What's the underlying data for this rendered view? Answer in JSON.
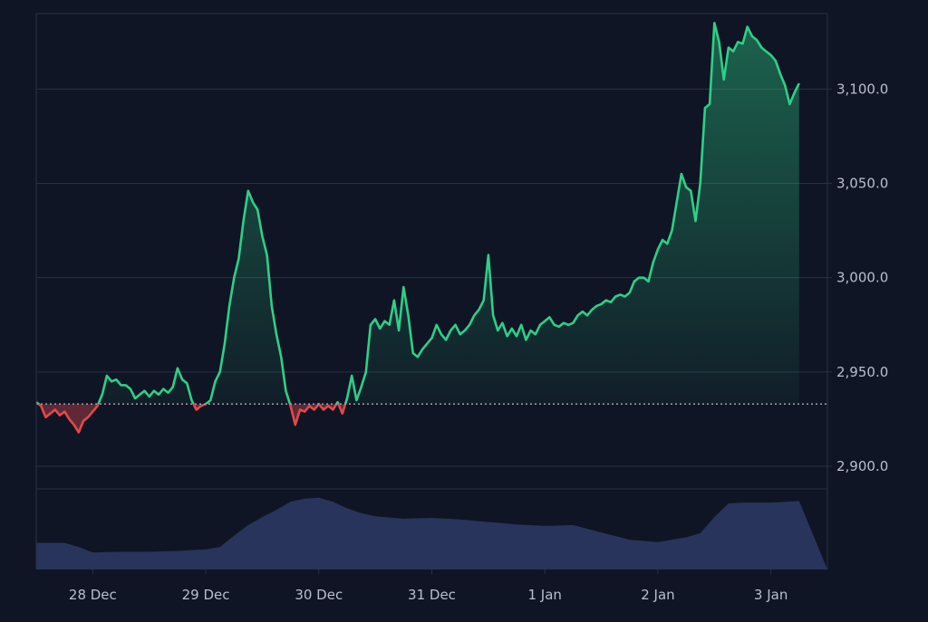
{
  "chart_data": {
    "type": "area",
    "title": "",
    "xlabel": "",
    "ylabel": "",
    "baseline": 2933,
    "ylim": [
      2888,
      3140
    ],
    "yticks": [
      {
        "value": 3100,
        "label": "3,100.0"
      },
      {
        "value": 3050,
        "label": "3,050.0"
      },
      {
        "value": 3000,
        "label": "3,000.0"
      },
      {
        "value": 2950,
        "label": "2,950.0"
      },
      {
        "value": 2900,
        "label": "2,900.0"
      }
    ],
    "xlim": [
      "27 Dec 12:00",
      "3 Jan 12:00"
    ],
    "xticks": [
      {
        "x": "28 Dec",
        "label": "28 Dec"
      },
      {
        "x": "29 Dec",
        "label": "29 Dec"
      },
      {
        "x": "30 Dec",
        "label": "30 Dec"
      },
      {
        "x": "31 Dec",
        "label": "31 Dec"
      },
      {
        "x": "1 Jan",
        "label": "1 Jan"
      },
      {
        "x": "2 Jan",
        "label": "2 Jan"
      },
      {
        "x": "3 Jan",
        "label": "3 Jan"
      }
    ],
    "series": [
      {
        "values": [
          [
            "27 Dec 12:00",
            2934
          ],
          [
            "27 Dec 13:00",
            2932
          ],
          [
            "27 Dec 14:00",
            2926
          ],
          [
            "27 Dec 15:00",
            2928
          ],
          [
            "27 Dec 16:00",
            2930
          ],
          [
            "27 Dec 17:00",
            2927
          ],
          [
            "27 Dec 18:00",
            2929
          ],
          [
            "27 Dec 19:00",
            2925
          ],
          [
            "27 Dec 20:00",
            2922
          ],
          [
            "27 Dec 21:00",
            2918
          ],
          [
            "27 Dec 22:00",
            2924
          ],
          [
            "27 Dec 23:00",
            2926
          ],
          [
            "28 Dec 00:00",
            2929
          ],
          [
            "28 Dec 01:00",
            2932
          ],
          [
            "28 Dec 02:00",
            2938
          ],
          [
            "28 Dec 03:00",
            2948
          ],
          [
            "28 Dec 04:00",
            2945
          ],
          [
            "28 Dec 05:00",
            2946
          ],
          [
            "28 Dec 06:00",
            2943
          ],
          [
            "28 Dec 07:00",
            2943
          ],
          [
            "28 Dec 08:00",
            2941
          ],
          [
            "28 Dec 09:00",
            2936
          ],
          [
            "28 Dec 10:00",
            2938
          ],
          [
            "28 Dec 11:00",
            2940
          ],
          [
            "28 Dec 12:00",
            2937
          ],
          [
            "28 Dec 13:00",
            2940
          ],
          [
            "28 Dec 14:00",
            2938
          ],
          [
            "28 Dec 15:00",
            2941
          ],
          [
            "28 Dec 16:00",
            2939
          ],
          [
            "28 Dec 17:00",
            2942
          ],
          [
            "28 Dec 18:00",
            2952
          ],
          [
            "28 Dec 19:00",
            2946
          ],
          [
            "28 Dec 20:00",
            2944
          ],
          [
            "28 Dec 21:00",
            2935
          ],
          [
            "28 Dec 22:00",
            2930
          ],
          [
            "28 Dec 23:00",
            2932
          ],
          [
            "29 Dec 00:00",
            2933
          ],
          [
            "29 Dec 01:00",
            2935
          ],
          [
            "29 Dec 02:00",
            2945
          ],
          [
            "29 Dec 03:00",
            2950
          ],
          [
            "29 Dec 04:00",
            2965
          ],
          [
            "29 Dec 05:00",
            2985
          ],
          [
            "29 Dec 06:00",
            3000
          ],
          [
            "29 Dec 07:00",
            3010
          ],
          [
            "29 Dec 08:00",
            3030
          ],
          [
            "29 Dec 09:00",
            3046
          ],
          [
            "29 Dec 10:00",
            3040
          ],
          [
            "29 Dec 11:00",
            3036
          ],
          [
            "29 Dec 12:00",
            3022
          ],
          [
            "29 Dec 13:00",
            3012
          ],
          [
            "29 Dec 14:00",
            2985
          ],
          [
            "29 Dec 15:00",
            2970
          ],
          [
            "29 Dec 16:00",
            2958
          ],
          [
            "29 Dec 17:00",
            2940
          ],
          [
            "29 Dec 18:00",
            2932
          ],
          [
            "29 Dec 19:00",
            2922
          ],
          [
            "29 Dec 20:00",
            2930
          ],
          [
            "29 Dec 21:00",
            2929
          ],
          [
            "29 Dec 22:00",
            2932
          ],
          [
            "29 Dec 23:00",
            2930
          ],
          [
            "30 Dec 00:00",
            2933
          ],
          [
            "30 Dec 01:00",
            2930
          ],
          [
            "30 Dec 02:00",
            2932
          ],
          [
            "30 Dec 03:00",
            2930
          ],
          [
            "30 Dec 04:00",
            2934
          ],
          [
            "30 Dec 05:00",
            2928
          ],
          [
            "30 Dec 06:00",
            2936
          ],
          [
            "30 Dec 07:00",
            2948
          ],
          [
            "30 Dec 08:00",
            2935
          ],
          [
            "30 Dec 09:00",
            2942
          ],
          [
            "30 Dec 10:00",
            2950
          ],
          [
            "30 Dec 11:00",
            2975
          ],
          [
            "30 Dec 12:00",
            2978
          ],
          [
            "30 Dec 13:00",
            2973
          ],
          [
            "30 Dec 14:00",
            2977
          ],
          [
            "30 Dec 15:00",
            2975
          ],
          [
            "30 Dec 16:00",
            2988
          ],
          [
            "30 Dec 17:00",
            2972
          ],
          [
            "30 Dec 18:00",
            2995
          ],
          [
            "30 Dec 19:00",
            2980
          ],
          [
            "30 Dec 20:00",
            2960
          ],
          [
            "30 Dec 21:00",
            2958
          ],
          [
            "30 Dec 22:00",
            2962
          ],
          [
            "30 Dec 23:00",
            2965
          ],
          [
            "31 Dec 00:00",
            2968
          ],
          [
            "31 Dec 01:00",
            2975
          ],
          [
            "31 Dec 02:00",
            2970
          ],
          [
            "31 Dec 03:00",
            2967
          ],
          [
            "31 Dec 04:00",
            2972
          ],
          [
            "31 Dec 05:00",
            2975
          ],
          [
            "31 Dec 06:00",
            2970
          ],
          [
            "31 Dec 07:00",
            2972
          ],
          [
            "31 Dec 08:00",
            2975
          ],
          [
            "31 Dec 09:00",
            2980
          ],
          [
            "31 Dec 10:00",
            2983
          ],
          [
            "31 Dec 11:00",
            2988
          ],
          [
            "31 Dec 12:00",
            3012
          ],
          [
            "31 Dec 13:00",
            2980
          ],
          [
            "31 Dec 14:00",
            2972
          ],
          [
            "31 Dec 15:00",
            2976
          ],
          [
            "31 Dec 16:00",
            2969
          ],
          [
            "31 Dec 17:00",
            2973
          ],
          [
            "31 Dec 18:00",
            2969
          ],
          [
            "31 Dec 19:00",
            2975
          ],
          [
            "31 Dec 20:00",
            2967
          ],
          [
            "31 Dec 21:00",
            2972
          ],
          [
            "31 Dec 22:00",
            2970
          ],
          [
            "31 Dec 23:00",
            2975
          ],
          [
            "1 Jan 00:00",
            2977
          ],
          [
            "1 Jan 01:00",
            2979
          ],
          [
            "1 Jan 02:00",
            2975
          ],
          [
            "1 Jan 03:00",
            2974
          ],
          [
            "1 Jan 04:00",
            2976
          ],
          [
            "1 Jan 05:00",
            2975
          ],
          [
            "1 Jan 06:00",
            2976
          ],
          [
            "1 Jan 07:00",
            2980
          ],
          [
            "1 Jan 08:00",
            2982
          ],
          [
            "1 Jan 09:00",
            2980
          ],
          [
            "1 Jan 10:00",
            2983
          ],
          [
            "1 Jan 11:00",
            2985
          ],
          [
            "1 Jan 12:00",
            2986
          ],
          [
            "1 Jan 13:00",
            2988
          ],
          [
            "1 Jan 14:00",
            2987
          ],
          [
            "1 Jan 15:00",
            2990
          ],
          [
            "1 Jan 16:00",
            2991
          ],
          [
            "1 Jan 17:00",
            2990
          ],
          [
            "1 Jan 18:00",
            2992
          ],
          [
            "1 Jan 19:00",
            2998
          ],
          [
            "1 Jan 20:00",
            3000
          ],
          [
            "1 Jan 21:00",
            3000
          ],
          [
            "1 Jan 22:00",
            2998
          ],
          [
            "1 Jan 23:00",
            3008
          ],
          [
            "2 Jan 00:00",
            3015
          ],
          [
            "2 Jan 01:00",
            3020
          ],
          [
            "2 Jan 02:00",
            3018
          ],
          [
            "2 Jan 03:00",
            3025
          ],
          [
            "2 Jan 04:00",
            3040
          ],
          [
            "2 Jan 05:00",
            3055
          ],
          [
            "2 Jan 06:00",
            3048
          ],
          [
            "2 Jan 07:00",
            3046
          ],
          [
            "2 Jan 08:00",
            3030
          ],
          [
            "2 Jan 09:00",
            3050
          ],
          [
            "2 Jan 10:00",
            3090
          ],
          [
            "2 Jan 11:00",
            3092
          ],
          [
            "2 Jan 12:00",
            3135
          ],
          [
            "2 Jan 13:00",
            3125
          ],
          [
            "2 Jan 14:00",
            3105
          ],
          [
            "2 Jan 15:00",
            3122
          ],
          [
            "2 Jan 16:00",
            3120
          ],
          [
            "2 Jan 17:00",
            3125
          ],
          [
            "2 Jan 18:00",
            3124
          ],
          [
            "2 Jan 19:00",
            3133
          ],
          [
            "2 Jan 20:00",
            3128
          ],
          [
            "2 Jan 21:00",
            3126
          ],
          [
            "2 Jan 22:00",
            3122
          ],
          [
            "2 Jan 23:00",
            3120
          ],
          [
            "3 Jan 00:00",
            3118
          ],
          [
            "3 Jan 01:00",
            3115
          ],
          [
            "3 Jan 02:00",
            3108
          ],
          [
            "3 Jan 03:00",
            3102
          ],
          [
            "3 Jan 04:00",
            3092
          ],
          [
            "3 Jan 05:00",
            3098
          ],
          [
            "3 Jan 06:00",
            3103
          ]
        ]
      }
    ],
    "volume": [
      [
        "27 Dec 12:00",
        0.33
      ],
      [
        "27 Dec 18:00",
        0.33
      ],
      [
        "27 Dec 21:00",
        0.28
      ],
      [
        "28 Dec 00:00",
        0.21
      ],
      [
        "28 Dec 06:00",
        0.22
      ],
      [
        "28 Dec 12:00",
        0.22
      ],
      [
        "28 Dec 18:00",
        0.23
      ],
      [
        "29 Dec 00:00",
        0.25
      ],
      [
        "29 Dec 03:00",
        0.28
      ],
      [
        "29 Dec 06:00",
        0.42
      ],
      [
        "29 Dec 09:00",
        0.55
      ],
      [
        "29 Dec 12:00",
        0.65
      ],
      [
        "29 Dec 15:00",
        0.74
      ],
      [
        "29 Dec 18:00",
        0.84
      ],
      [
        "29 Dec 21:00",
        0.88
      ],
      [
        "30 Dec 00:00",
        0.89
      ],
      [
        "30 Dec 03:00",
        0.84
      ],
      [
        "30 Dec 06:00",
        0.76
      ],
      [
        "30 Dec 09:00",
        0.7
      ],
      [
        "30 Dec 12:00",
        0.66
      ],
      [
        "30 Dec 18:00",
        0.63
      ],
      [
        "31 Dec 00:00",
        0.64
      ],
      [
        "31 Dec 06:00",
        0.62
      ],
      [
        "31 Dec 12:00",
        0.59
      ],
      [
        "31 Dec 18:00",
        0.56
      ],
      [
        "1 Jan 00:00",
        0.54
      ],
      [
        "1 Jan 06:00",
        0.55
      ],
      [
        "1 Jan 12:00",
        0.46
      ],
      [
        "1 Jan 18:00",
        0.37
      ],
      [
        "2 Jan 00:00",
        0.34
      ],
      [
        "2 Jan 06:00",
        0.4
      ],
      [
        "2 Jan 09:00",
        0.45
      ],
      [
        "2 Jan 12:00",
        0.65
      ],
      [
        "2 Jan 15:00",
        0.82
      ],
      [
        "2 Jan 18:00",
        0.83
      ],
      [
        "3 Jan 00:00",
        0.83
      ],
      [
        "3 Jan 06:00",
        0.85
      ]
    ],
    "colors": {
      "background": "#0f1524",
      "up_line": "#2ecf86",
      "down_line": "#e2484d",
      "volume": "#2a3660",
      "grid": "#2a3145",
      "axis_text": "#b9bfcc",
      "baseline": "#9aa1b0"
    },
    "legend": "none",
    "grid": true
  }
}
